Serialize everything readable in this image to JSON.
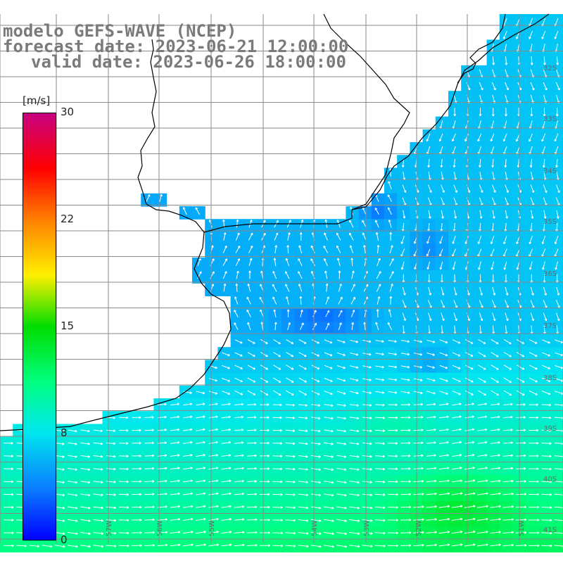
{
  "map": {
    "title_line1": "modelo GEFS-WAVE (NCEP)",
    "title_line2": "forecast date: 2023-06-21 12:00:00",
    "title_line3": "valid date: 2023-06-26 18:00:00",
    "variable": "wind speed",
    "units": "[m/s]",
    "colorbar": {
      "ticks": [
        "30",
        "22",
        "15",
        "8",
        "0"
      ],
      "colors": [
        "#0000ff",
        "#0a7dff",
        "#00e6f0",
        "#00ff80",
        "#00dd00",
        "#fff000",
        "#ff8000",
        "#ff0000",
        "#c80080"
      ]
    },
    "lat_labels": [
      "32S",
      "33S",
      "34S",
      "35S",
      "36S",
      "37S",
      "38S",
      "39S",
      "40S",
      "41S"
    ],
    "lon_labels": [
      "57W",
      "56W",
      "55W",
      "54W",
      "53W",
      "52W",
      "51W"
    ],
    "speed_field_description": "Blue (low) near coast, cyan mid-ocean, green-yellow in the south"
  }
}
